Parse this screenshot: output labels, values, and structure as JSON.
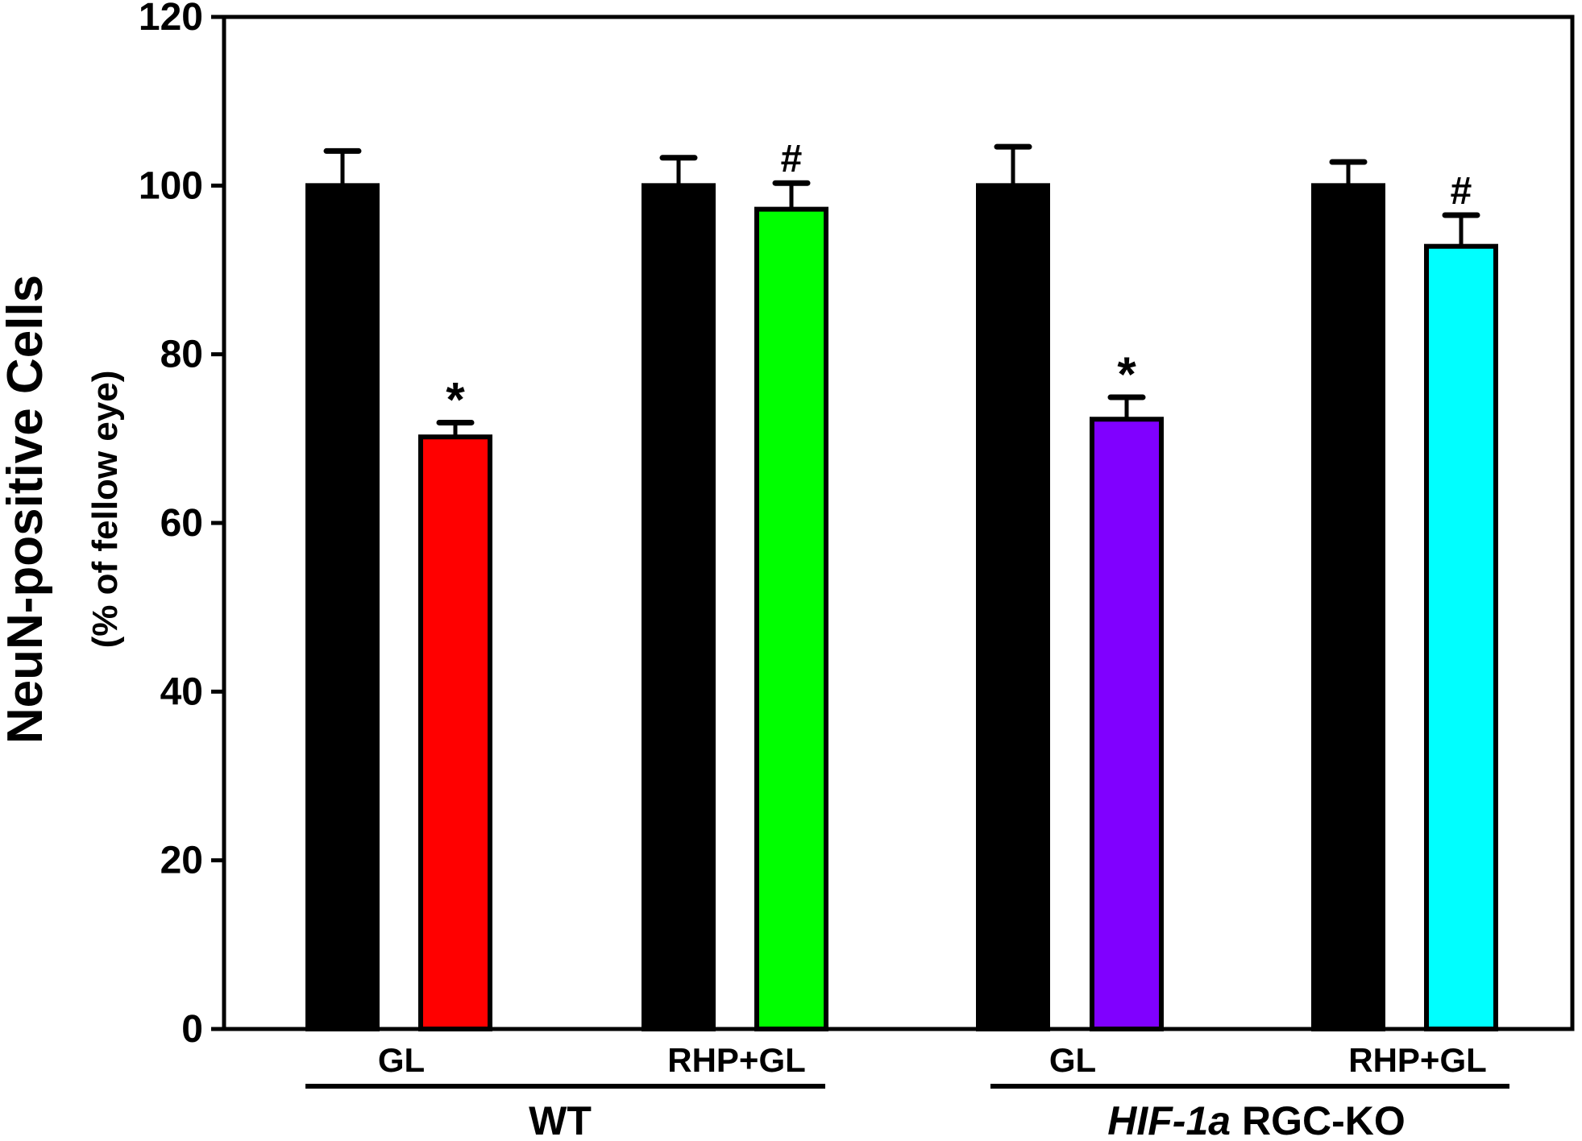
{
  "chart_data": {
    "type": "bar",
    "ylabel": "NeuN-positive  Cells",
    "ylabel_sub": "(% of fellow eye)",
    "ylim": [
      0,
      120
    ],
    "yticks": [
      0,
      20,
      40,
      60,
      80,
      100,
      120
    ],
    "grid": false,
    "bars": [
      {
        "value": 100,
        "error": 4.1,
        "color": "#000000",
        "annotation": ""
      },
      {
        "value": 70.2,
        "error": 1.7,
        "color": "#ff0000",
        "annotation": "*"
      },
      {
        "value": 100,
        "error": 3.3,
        "color": "#000000",
        "annotation": ""
      },
      {
        "value": 97.2,
        "error": 3.1,
        "color": "#00ff00",
        "annotation": "#"
      },
      {
        "value": 100,
        "error": 4.6,
        "color": "#000000",
        "annotation": ""
      },
      {
        "value": 72.3,
        "error": 2.6,
        "color": "#8000ff",
        "annotation": "*"
      },
      {
        "value": 100,
        "error": 2.8,
        "color": "#000000",
        "annotation": ""
      },
      {
        "value": 92.8,
        "error": 3.7,
        "color": "#00ffff",
        "annotation": "#"
      }
    ],
    "treatment_labels": [
      "GL",
      "RHP+GL",
      "GL",
      "RHP+GL"
    ],
    "groups": [
      {
        "label": "WT",
        "label_italic": "",
        "label_rest": "WT"
      },
      {
        "label": "HIF-1a RGC-KO",
        "label_italic": "HIF-1a",
        "label_rest": " RGC-KO"
      }
    ]
  }
}
